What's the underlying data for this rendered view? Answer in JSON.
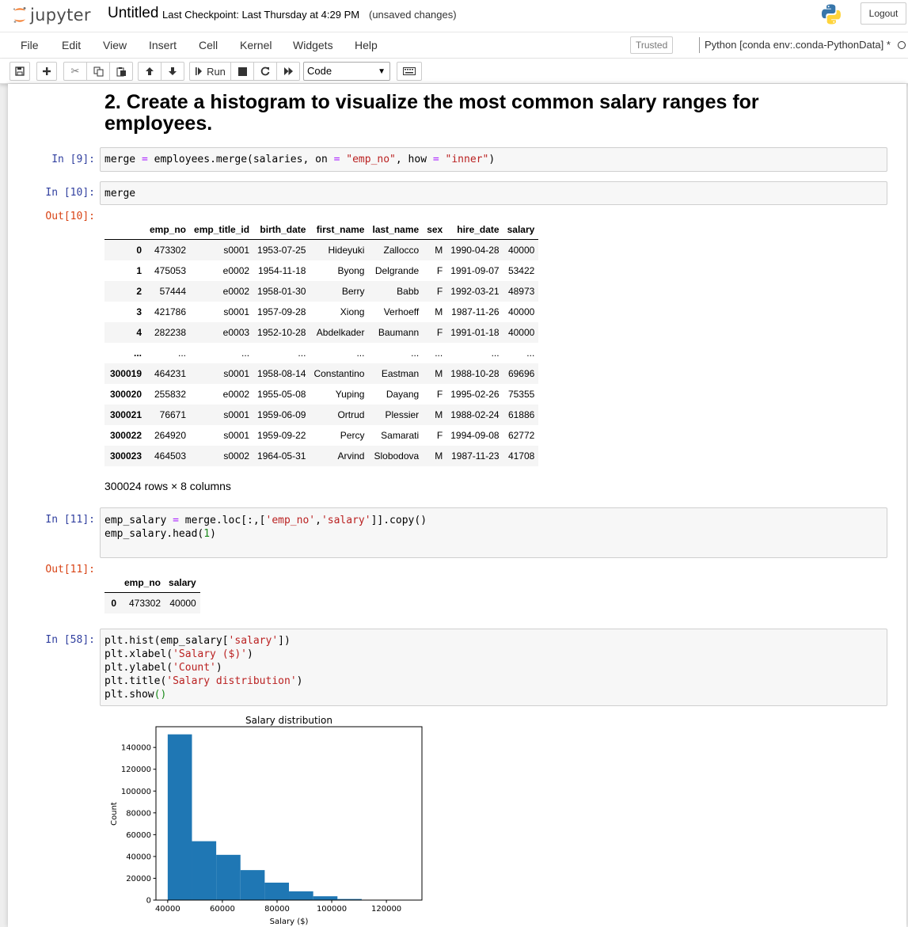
{
  "header": {
    "logo_text": "jupyter",
    "notebook_name": "Untitled",
    "checkpoint": "Last Checkpoint: Last Thursday at 4:29 PM",
    "unsaved": "(unsaved changes)",
    "logout_label": "Logout"
  },
  "menubar": {
    "items": [
      "File",
      "Edit",
      "View",
      "Insert",
      "Cell",
      "Kernel",
      "Widgets",
      "Help"
    ],
    "trusted_label": "Trusted",
    "kernel_name": "Python [conda env:.conda-PythonData] *"
  },
  "toolbar": {
    "run_label": "Run",
    "cell_type": "Code"
  },
  "notebook": {
    "heading": "2. Create a histogram to visualize the most common salary ranges for employees.",
    "cells": [
      {
        "prompt": "In [9]:",
        "code": [
          "merge = employees.merge(salaries, on = \"emp_no\", how = \"inner\")"
        ]
      },
      {
        "prompt": "In [10]:",
        "code": [
          "merge"
        ]
      },
      {
        "prompt": "In [11]:",
        "code": [
          "emp_salary = merge.loc[:,['emp_no','salary']].copy()",
          "emp_salary.head(1)"
        ]
      },
      {
        "prompt": "In [58]:",
        "code": [
          "plt.hist(emp_salary['salary'])",
          "plt.xlabel('Salary ($)')",
          "plt.ylabel('Count')",
          "plt.title('Salary distribution')",
          "plt.show()"
        ]
      }
    ],
    "out10_prompt": "Out[10]:",
    "out11_prompt": "Out[11]:",
    "df_merge": {
      "columns": [
        "emp_no",
        "emp_title_id",
        "birth_date",
        "first_name",
        "last_name",
        "sex",
        "hire_date",
        "salary"
      ],
      "rows": [
        [
          "0",
          "473302",
          "s0001",
          "1953-07-25",
          "Hideyuki",
          "Zallocco",
          "M",
          "1990-04-28",
          "40000"
        ],
        [
          "1",
          "475053",
          "e0002",
          "1954-11-18",
          "Byong",
          "Delgrande",
          "F",
          "1991-09-07",
          "53422"
        ],
        [
          "2",
          "57444",
          "e0002",
          "1958-01-30",
          "Berry",
          "Babb",
          "F",
          "1992-03-21",
          "48973"
        ],
        [
          "3",
          "421786",
          "s0001",
          "1957-09-28",
          "Xiong",
          "Verhoeff",
          "M",
          "1987-11-26",
          "40000"
        ],
        [
          "4",
          "282238",
          "e0003",
          "1952-10-28",
          "Abdelkader",
          "Baumann",
          "F",
          "1991-01-18",
          "40000"
        ],
        [
          "...",
          "...",
          "...",
          "...",
          "...",
          "...",
          "...",
          "...",
          "..."
        ],
        [
          "300019",
          "464231",
          "s0001",
          "1958-08-14",
          "Constantino",
          "Eastman",
          "M",
          "1988-10-28",
          "69696"
        ],
        [
          "300020",
          "255832",
          "e0002",
          "1955-05-08",
          "Yuping",
          "Dayang",
          "F",
          "1995-02-26",
          "75355"
        ],
        [
          "300021",
          "76671",
          "s0001",
          "1959-06-09",
          "Ortrud",
          "Plessier",
          "M",
          "1988-02-24",
          "61886"
        ],
        [
          "300022",
          "264920",
          "s0001",
          "1959-09-22",
          "Percy",
          "Samarati",
          "F",
          "1994-09-08",
          "62772"
        ],
        [
          "300023",
          "464503",
          "s0002",
          "1964-05-31",
          "Arvind",
          "Slobodova",
          "M",
          "1987-11-23",
          "41708"
        ]
      ],
      "shape_info": "300024 rows × 8 columns"
    },
    "df_emp_salary": {
      "columns": [
        "emp_no",
        "salary"
      ],
      "rows": [
        [
          "0",
          "473302",
          "40000"
        ]
      ]
    }
  },
  "colors": {
    "bar": "#1f77b4",
    "in_prompt": "#303f9f",
    "out_prompt": "#d84315",
    "string": "#ba2121"
  },
  "chart_data": {
    "type": "bar",
    "title": "Salary distribution",
    "xlabel": "Salary ($)",
    "ylabel": "Count",
    "bin_edges": [
      40000,
      48871,
      57742,
      66613,
      75484,
      84355,
      93226,
      102097,
      110968,
      119839,
      128710
    ],
    "values": [
      152000,
      54000,
      41500,
      27500,
      16000,
      8000,
      3500,
      1000,
      300,
      50
    ],
    "xlim": [
      35700,
      133000
    ],
    "ylim": [
      0,
      159000
    ],
    "xticks": [
      "40000",
      "60000",
      "80000",
      "100000",
      "120000"
    ],
    "xtick_values": [
      40000,
      60000,
      80000,
      100000,
      120000
    ],
    "yticks": [
      "0",
      "20000",
      "40000",
      "60000",
      "80000",
      "100000",
      "120000",
      "140000"
    ],
    "ytick_values": [
      0,
      20000,
      40000,
      60000,
      80000,
      100000,
      120000,
      140000
    ]
  }
}
